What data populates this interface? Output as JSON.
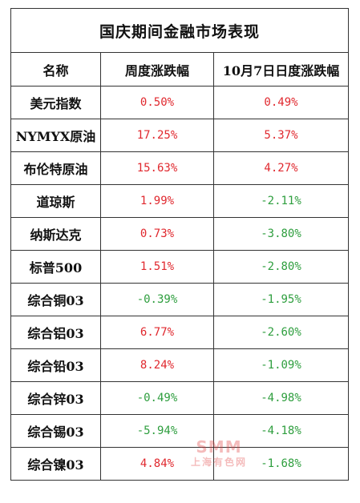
{
  "table": {
    "title": "国庆期间金融市场表现",
    "headers": [
      "名称",
      "周度涨跌幅",
      "10月7日日度涨跌幅"
    ],
    "rows": [
      {
        "name": "美元指数",
        "weekly": "0.50%",
        "daily": "0.49%",
        "weekly_dir": "up",
        "daily_dir": "up"
      },
      {
        "name": "NYMYX原油",
        "weekly": "17.25%",
        "daily": "5.37%",
        "weekly_dir": "up",
        "daily_dir": "up"
      },
      {
        "name": "布伦特原油",
        "weekly": "15.63%",
        "daily": "4.27%",
        "weekly_dir": "up",
        "daily_dir": "up"
      },
      {
        "name": "道琼斯",
        "weekly": "1.99%",
        "daily": "-2.11%",
        "weekly_dir": "up",
        "daily_dir": "down"
      },
      {
        "name": "纳斯达克",
        "weekly": "0.73%",
        "daily": "-3.80%",
        "weekly_dir": "up",
        "daily_dir": "down"
      },
      {
        "name": "标普500",
        "weekly": "1.51%",
        "daily": "-2.80%",
        "weekly_dir": "up",
        "daily_dir": "down"
      },
      {
        "name": "综合铜03",
        "weekly": "-0.39%",
        "daily": "-1.95%",
        "weekly_dir": "down",
        "daily_dir": "down"
      },
      {
        "name": "综合铝03",
        "weekly": "6.77%",
        "daily": "-2.60%",
        "weekly_dir": "up",
        "daily_dir": "down"
      },
      {
        "name": "综合铅03",
        "weekly": "8.24%",
        "daily": "-1.09%",
        "weekly_dir": "up",
        "daily_dir": "down"
      },
      {
        "name": "综合锌03",
        "weekly": "-0.49%",
        "daily": "-4.98%",
        "weekly_dir": "down",
        "daily_dir": "down"
      },
      {
        "name": "综合锡03",
        "weekly": "-5.94%",
        "daily": "-4.18%",
        "weekly_dir": "down",
        "daily_dir": "down"
      },
      {
        "name": "综合镍03",
        "weekly": "4.84%",
        "daily": "-1.68%",
        "weekly_dir": "up",
        "daily_dir": "down"
      }
    ]
  },
  "colors": {
    "up": "#e0282e",
    "down": "#2e9e3e"
  },
  "watermark": {
    "logo": "SMM",
    "subtitle": "上海有色网"
  }
}
